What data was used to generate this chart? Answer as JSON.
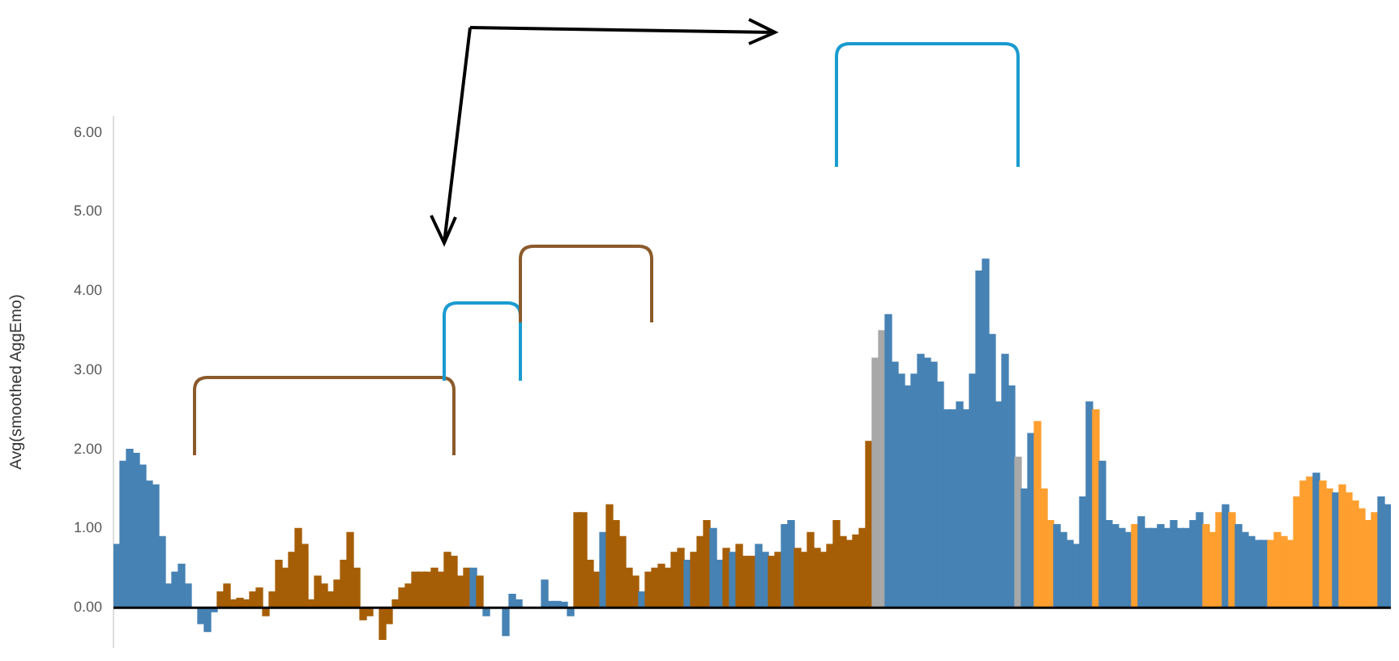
{
  "chart_data": {
    "type": "bar",
    "ylabel": "Avg(smoothed AggEmo)",
    "categories": [
      null,
      null,
      null,
      null,
      null,
      null,
      null,
      null,
      null,
      null,
      null,
      null,
      null,
      null,
      null,
      null,
      null,
      null,
      null,
      null,
      null,
      null,
      null,
      null,
      null,
      null,
      null,
      null,
      null,
      null,
      null,
      null,
      null,
      null,
      null,
      null,
      null,
      null,
      null,
      null,
      null,
      null,
      null,
      null,
      null,
      null,
      null,
      null,
      null,
      null,
      null,
      null,
      null,
      null,
      null,
      null,
      null,
      null,
      null,
      null,
      null,
      null,
      null,
      null,
      null,
      null,
      null,
      null,
      null,
      null,
      null,
      null,
      null,
      null,
      null,
      null,
      null,
      null,
      null,
      null,
      null,
      null,
      null,
      null,
      null,
      null,
      null,
      null,
      null,
      null,
      null,
      null,
      null,
      null,
      null,
      null,
      null,
      null,
      null,
      null,
      null,
      null,
      null,
      null,
      null,
      null,
      null,
      null,
      null,
      null,
      null,
      null,
      null,
      null,
      null,
      null,
      null,
      null,
      null,
      null,
      null,
      null,
      null,
      null,
      null,
      null,
      null,
      null,
      null,
      null,
      null,
      null,
      null,
      null,
      null,
      null,
      null,
      null,
      null,
      null,
      null,
      null,
      null,
      null,
      null,
      null,
      null,
      null,
      null,
      null,
      null,
      null,
      null,
      null,
      null,
      null,
      null,
      null,
      null,
      null,
      null,
      null,
      null,
      null,
      null,
      null,
      null,
      null,
      null,
      null,
      null,
      null,
      null,
      null,
      null,
      null,
      null,
      null,
      null,
      null,
      null,
      null,
      null,
      null,
      null,
      null,
      null,
      null,
      null,
      null,
      null,
      null,
      null,
      null,
      null,
      null,
      null
    ],
    "values": [
      0.8,
      1.85,
      2.0,
      1.95,
      1.8,
      1.6,
      1.55,
      0.9,
      0.3,
      0.45,
      0.55,
      0.3,
      null,
      -0.2,
      -0.3,
      -0.05,
      0.2,
      0.3,
      0.1,
      0.12,
      0.1,
      0.2,
      0.25,
      -0.1,
      0.2,
      0.6,
      0.5,
      0.7,
      1.0,
      0.8,
      0.1,
      0.4,
      0.3,
      0.2,
      0.35,
      0.6,
      0.95,
      0.5,
      -0.15,
      -0.1,
      0.0,
      -0.4,
      -0.2,
      0.1,
      0.25,
      0.3,
      0.45,
      0.45,
      0.45,
      0.5,
      0.45,
      0.7,
      0.65,
      0.4,
      0.5,
      0.5,
      0.4,
      -0.1,
      null,
      0.0,
      -0.35,
      0.17,
      0.1,
      null,
      null,
      null,
      0.35,
      0.08,
      0.08,
      0.07,
      -0.1,
      1.2,
      1.2,
      0.6,
      0.45,
      0.95,
      1.3,
      1.1,
      0.9,
      0.5,
      0.4,
      0.2,
      0.45,
      0.5,
      0.55,
      0.5,
      0.7,
      0.75,
      0.6,
      0.7,
      0.9,
      1.1,
      1.0,
      0.6,
      0.75,
      0.7,
      0.8,
      0.65,
      0.65,
      0.8,
      0.7,
      0.65,
      0.7,
      1.05,
      1.1,
      0.75,
      0.7,
      0.95,
      0.75,
      0.7,
      0.8,
      1.1,
      0.9,
      0.85,
      0.92,
      1.0,
      2.1,
      3.15,
      3.5,
      3.7,
      3.1,
      2.95,
      2.8,
      2.95,
      3.2,
      3.15,
      3.1,
      2.85,
      2.5,
      2.5,
      2.6,
      2.5,
      2.95,
      4.25,
      4.4,
      3.45,
      2.6,
      3.2,
      2.8,
      1.9,
      1.5,
      2.2,
      2.35,
      1.5,
      1.1,
      1.05,
      0.95,
      0.85,
      0.8,
      1.4,
      2.6,
      2.5,
      1.85,
      1.1,
      1.05,
      1.0,
      0.95,
      1.05,
      1.15,
      1.0,
      1.0,
      1.05,
      1.0,
      1.1,
      1.0,
      1.0,
      1.1,
      1.2,
      1.05,
      0.95,
      1.2,
      1.3,
      1.2,
      1.05,
      0.95,
      0.9,
      0.85,
      0.85,
      0.85,
      0.95,
      0.9,
      0.85,
      1.4,
      1.6,
      1.65,
      1.7,
      1.6,
      1.5,
      1.45,
      1.55,
      1.45,
      1.35,
      1.25,
      1.1,
      1.2,
      1.4,
      1.3
    ],
    "colors": [
      "#4682b4",
      "#4682b4",
      "#4682b4",
      "#4682b4",
      "#4682b4",
      "#4682b4",
      "#4682b4",
      "#4682b4",
      "#4682b4",
      "#4682b4",
      "#4682b4",
      "#4682b4",
      "#4682b4",
      "#4682b4",
      "#4682b4",
      "#4682b4",
      "#a65e06",
      "#a65e06",
      "#a65e06",
      "#a65e06",
      "#a65e06",
      "#a65e06",
      "#a65e06",
      "#a65e06",
      "#a65e06",
      "#a65e06",
      "#a65e06",
      "#a65e06",
      "#a65e06",
      "#a65e06",
      "#a65e06",
      "#a65e06",
      "#a65e06",
      "#a65e06",
      "#a65e06",
      "#a65e06",
      "#a65e06",
      "#a65e06",
      "#a65e06",
      "#a65e06",
      "#a65e06",
      "#a65e06",
      "#a65e06",
      "#a65e06",
      "#a65e06",
      "#a65e06",
      "#a65e06",
      "#a65e06",
      "#a65e06",
      "#a65e06",
      "#a65e06",
      "#a65e06",
      "#a65e06",
      "#a65e06",
      "#a65e06",
      "#4682b4",
      "#a65e06",
      "#4682b4",
      "#4682b4",
      "#4682b4",
      "#4682b4",
      "#4682b4",
      "#4682b4",
      "#4682b4",
      "#4682b4",
      "#4682b4",
      "#4682b4",
      "#4682b4",
      "#4682b4",
      "#4682b4",
      "#4682b4",
      "#a65e06",
      "#a65e06",
      "#a65e06",
      "#a65e06",
      "#4682b4",
      "#a65e06",
      "#a65e06",
      "#a65e06",
      "#a65e06",
      "#a65e06",
      "#4682b4",
      "#a65e06",
      "#a65e06",
      "#a65e06",
      "#a65e06",
      "#a65e06",
      "#a65e06",
      "#4682b4",
      "#a65e06",
      "#a65e06",
      "#a65e06",
      "#4682b4",
      "#4682b4",
      "#a65e06",
      "#4682b4",
      "#a65e06",
      "#a65e06",
      "#a65e06",
      "#4682b4",
      "#4682b4",
      "#a65e06",
      "#a65e06",
      "#4682b4",
      "#4682b4",
      "#a65e06",
      "#a65e06",
      "#a65e06",
      "#a65e06",
      "#a65e06",
      "#a65e06",
      "#a65e06",
      "#a65e06",
      "#a65e06",
      "#a65e06",
      "#a65e06",
      "#a65e06",
      "#a8a8a8",
      "#a8a8a8",
      "#4682b4",
      "#4682b4",
      "#4682b4",
      "#4682b4",
      "#4682b4",
      "#4682b4",
      "#4682b4",
      "#4682b4",
      "#4682b4",
      "#4682b4",
      "#4682b4",
      "#4682b4",
      "#4682b4",
      "#4682b4",
      "#4682b4",
      "#4682b4",
      "#4682b4",
      "#4682b4",
      "#4682b4",
      "#4682b4",
      "#a8a8a8",
      "#4682b4",
      "#4682b4",
      "#ff9f2f",
      "#ff9f2f",
      "#ff9f2f",
      "#4682b4",
      "#4682b4",
      "#4682b4",
      "#4682b4",
      "#4682b4",
      "#4682b4",
      "#ff9f2f",
      "#4682b4",
      "#4682b4",
      "#4682b4",
      "#4682b4",
      "#4682b4",
      "#ff9f2f",
      "#4682b4",
      "#4682b4",
      "#4682b4",
      "#4682b4",
      "#4682b4",
      "#4682b4",
      "#4682b4",
      "#4682b4",
      "#4682b4",
      "#4682b4",
      "#ff9f2f",
      "#ff9f2f",
      "#ff9f2f",
      "#4682b4",
      "#ff9f2f",
      "#4682b4",
      "#4682b4",
      "#4682b4",
      "#4682b4",
      "#4682b4",
      "#ff9f2f",
      "#ff9f2f",
      "#ff9f2f",
      "#ff9f2f",
      "#ff9f2f",
      "#ff9f2f",
      "#ff9f2f",
      "#4682b4",
      "#ff9f2f",
      "#ff9f2f",
      "#4682b4",
      "#ff9f2f",
      "#ff9f2f",
      "#ff9f2f",
      "#ff9f2f",
      "#ff9f2f",
      "#ff9f2f",
      "#4682b4",
      "#4682b4"
    ],
    "ylim": [
      -0.5,
      6.2
    ],
    "yticks": [
      {
        "value": 0,
        "label": "0.00"
      },
      {
        "value": 1,
        "label": "1.00"
      },
      {
        "value": 2,
        "label": "2.00"
      },
      {
        "value": 3,
        "label": "3.00"
      },
      {
        "value": 4,
        "label": "4.00"
      },
      {
        "value": 5,
        "label": "5.00"
      },
      {
        "value": 6,
        "label": "6.00"
      }
    ],
    "ref_lines": [
      {
        "axis": "y",
        "value": 0,
        "color": "#000000"
      }
    ],
    "tick_labels": "y",
    "grid": false,
    "legend": false
  }
}
